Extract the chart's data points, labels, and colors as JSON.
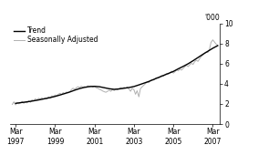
{
  "ylabel_right": "'000",
  "ylim": [
    0,
    10
  ],
  "yticks": [
    0,
    2,
    4,
    6,
    8,
    10
  ],
  "xlim_start": 1996.9,
  "xlim_end": 2007.5,
  "xtick_years": [
    1997,
    1999,
    2001,
    2003,
    2005,
    2007
  ],
  "legend_entries": [
    "Trend",
    "Seasonally Adjusted"
  ],
  "trend_color": "#000000",
  "sa_color": "#b0b0b0",
  "background_color": "#ffffff",
  "trend_lw": 1.0,
  "sa_lw": 0.7,
  "trend_data": [
    [
      1997.17,
      2.05
    ],
    [
      1997.42,
      2.12
    ],
    [
      1997.67,
      2.18
    ],
    [
      1997.92,
      2.25
    ],
    [
      1998.17,
      2.33
    ],
    [
      1998.42,
      2.42
    ],
    [
      1998.67,
      2.52
    ],
    [
      1998.92,
      2.62
    ],
    [
      1999.17,
      2.74
    ],
    [
      1999.42,
      2.88
    ],
    [
      1999.67,
      3.03
    ],
    [
      1999.92,
      3.18
    ],
    [
      2000.17,
      3.36
    ],
    [
      2000.42,
      3.52
    ],
    [
      2000.67,
      3.64
    ],
    [
      2000.92,
      3.72
    ],
    [
      2001.17,
      3.74
    ],
    [
      2001.42,
      3.7
    ],
    [
      2001.67,
      3.6
    ],
    [
      2001.92,
      3.5
    ],
    [
      2002.17,
      3.44
    ],
    [
      2002.42,
      3.48
    ],
    [
      2002.67,
      3.55
    ],
    [
      2002.92,
      3.62
    ],
    [
      2003.17,
      3.72
    ],
    [
      2003.42,
      3.88
    ],
    [
      2003.67,
      4.05
    ],
    [
      2003.92,
      4.22
    ],
    [
      2004.17,
      4.42
    ],
    [
      2004.42,
      4.62
    ],
    [
      2004.67,
      4.82
    ],
    [
      2004.92,
      5.02
    ],
    [
      2005.17,
      5.22
    ],
    [
      2005.42,
      5.48
    ],
    [
      2005.67,
      5.72
    ],
    [
      2005.92,
      5.98
    ],
    [
      2006.17,
      6.28
    ],
    [
      2006.42,
      6.6
    ],
    [
      2006.67,
      6.92
    ],
    [
      2006.92,
      7.22
    ],
    [
      2007.17,
      7.52
    ],
    [
      2007.42,
      7.78
    ]
  ],
  "sa_data": [
    [
      1997.0,
      1.95
    ],
    [
      1997.08,
      2.2
    ],
    [
      1997.17,
      1.9
    ],
    [
      1997.25,
      2.15
    ],
    [
      1997.33,
      2.0
    ],
    [
      1997.42,
      2.1
    ],
    [
      1997.5,
      2.25
    ],
    [
      1997.58,
      2.05
    ],
    [
      1997.67,
      2.2
    ],
    [
      1997.75,
      2.1
    ],
    [
      1997.83,
      2.3
    ],
    [
      1997.92,
      2.15
    ],
    [
      1998.0,
      2.4
    ],
    [
      1998.08,
      2.3
    ],
    [
      1998.17,
      2.5
    ],
    [
      1998.25,
      2.38
    ],
    [
      1998.33,
      2.55
    ],
    [
      1998.42,
      2.45
    ],
    [
      1998.5,
      2.6
    ],
    [
      1998.58,
      2.48
    ],
    [
      1998.67,
      2.58
    ],
    [
      1998.75,
      2.5
    ],
    [
      1998.83,
      2.7
    ],
    [
      1998.92,
      2.55
    ],
    [
      1999.0,
      2.8
    ],
    [
      1999.08,
      2.7
    ],
    [
      1999.17,
      2.88
    ],
    [
      1999.25,
      2.78
    ],
    [
      1999.33,
      2.95
    ],
    [
      1999.42,
      3.05
    ],
    [
      1999.5,
      2.92
    ],
    [
      1999.58,
      3.12
    ],
    [
      1999.67,
      3.0
    ],
    [
      1999.75,
      3.18
    ],
    [
      1999.83,
      3.08
    ],
    [
      1999.92,
      3.22
    ],
    [
      2000.0,
      3.42
    ],
    [
      2000.08,
      3.55
    ],
    [
      2000.17,
      3.45
    ],
    [
      2000.25,
      3.6
    ],
    [
      2000.33,
      3.7
    ],
    [
      2000.42,
      3.62
    ],
    [
      2000.5,
      3.75
    ],
    [
      2000.58,
      3.65
    ],
    [
      2000.67,
      3.72
    ],
    [
      2000.75,
      3.62
    ],
    [
      2000.83,
      3.8
    ],
    [
      2000.92,
      3.68
    ],
    [
      2001.0,
      3.78
    ],
    [
      2001.08,
      3.65
    ],
    [
      2001.17,
      3.72
    ],
    [
      2001.25,
      3.6
    ],
    [
      2001.33,
      3.55
    ],
    [
      2001.42,
      3.45
    ],
    [
      2001.5,
      3.38
    ],
    [
      2001.58,
      3.28
    ],
    [
      2001.67,
      3.2
    ],
    [
      2001.75,
      3.15
    ],
    [
      2001.83,
      3.25
    ],
    [
      2001.92,
      3.35
    ],
    [
      2002.0,
      3.25
    ],
    [
      2002.08,
      3.42
    ],
    [
      2002.17,
      3.32
    ],
    [
      2002.25,
      3.48
    ],
    [
      2002.33,
      3.38
    ],
    [
      2002.42,
      3.52
    ],
    [
      2002.5,
      3.62
    ],
    [
      2002.58,
      3.52
    ],
    [
      2002.67,
      3.65
    ],
    [
      2002.75,
      3.55
    ],
    [
      2002.83,
      3.68
    ],
    [
      2002.92,
      3.45
    ],
    [
      2003.0,
      3.25
    ],
    [
      2003.08,
      3.55
    ],
    [
      2003.17,
      3.4
    ],
    [
      2003.25,
      2.95
    ],
    [
      2003.33,
      3.3
    ],
    [
      2003.42,
      2.7
    ],
    [
      2003.5,
      3.5
    ],
    [
      2003.58,
      3.68
    ],
    [
      2003.67,
      3.85
    ],
    [
      2003.75,
      4.0
    ],
    [
      2003.83,
      4.15
    ],
    [
      2003.92,
      4.1
    ],
    [
      2004.0,
      4.28
    ],
    [
      2004.08,
      4.42
    ],
    [
      2004.17,
      4.35
    ],
    [
      2004.25,
      4.52
    ],
    [
      2004.33,
      4.62
    ],
    [
      2004.42,
      4.55
    ],
    [
      2004.5,
      4.7
    ],
    [
      2004.58,
      4.82
    ],
    [
      2004.67,
      4.75
    ],
    [
      2004.75,
      4.9
    ],
    [
      2004.83,
      5.02
    ],
    [
      2004.92,
      4.95
    ],
    [
      2005.0,
      5.1
    ],
    [
      2005.08,
      5.25
    ],
    [
      2005.17,
      5.05
    ],
    [
      2005.25,
      5.18
    ],
    [
      2005.33,
      5.38
    ],
    [
      2005.42,
      5.28
    ],
    [
      2005.5,
      5.45
    ],
    [
      2005.58,
      5.35
    ],
    [
      2005.67,
      5.52
    ],
    [
      2005.75,
      5.68
    ],
    [
      2005.83,
      5.82
    ],
    [
      2005.92,
      5.7
    ],
    [
      2006.0,
      5.88
    ],
    [
      2006.08,
      6.02
    ],
    [
      2006.17,
      5.92
    ],
    [
      2006.25,
      6.18
    ],
    [
      2006.33,
      6.32
    ],
    [
      2006.42,
      6.22
    ],
    [
      2006.5,
      6.48
    ],
    [
      2006.58,
      6.68
    ],
    [
      2006.67,
      6.85
    ],
    [
      2006.75,
      7.05
    ],
    [
      2006.83,
      7.15
    ],
    [
      2006.92,
      7.1
    ],
    [
      2007.0,
      7.42
    ],
    [
      2007.08,
      8.1
    ],
    [
      2007.17,
      8.35
    ],
    [
      2007.25,
      8.15
    ],
    [
      2007.33,
      7.95
    ],
    [
      2007.42,
      7.8
    ]
  ]
}
